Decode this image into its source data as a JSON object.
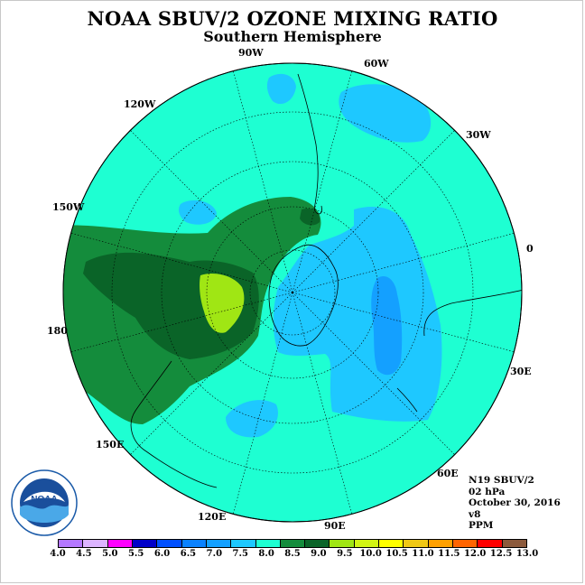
{
  "header": {
    "title": "NOAA SBUV/2 OZONE MIXING RATIO",
    "subtitle": "Southern Hemisphere"
  },
  "map": {
    "projection": "south-polar-stereographic",
    "longitude_labels": [
      "90W",
      "60W",
      "30W",
      "0",
      "30E",
      "60E",
      "90E",
      "120E",
      "150E",
      "180",
      "150W",
      "120W"
    ],
    "ocean_fill": "#1effd2",
    "contour_colors": {
      "7.0-7.5": "#1ec8ff",
      "8.0-8.5": "#148c3c",
      "8.5-9.0": "#0a6428",
      "9.0-9.5": "#a0e614"
    }
  },
  "info": {
    "satellite": "N19 SBUV/2",
    "level": "02 hPa",
    "date": "October 30, 2016",
    "version": "v8",
    "units": "PPM"
  },
  "logo": {
    "label": "NOAA",
    "icon": "noaa-logo"
  },
  "colorbar": {
    "colors": [
      "#b478ff",
      "#dcb4ff",
      "#ff00ff",
      "#0000c8",
      "#0050ff",
      "#0a82ff",
      "#14a0ff",
      "#1ec8ff",
      "#1effd2",
      "#148c3c",
      "#0a6428",
      "#a0e614",
      "#d2f514",
      "#ffff00",
      "#f0c814",
      "#ffa000",
      "#ff6400",
      "#ff0000",
      "#8c5a3c"
    ],
    "ticks": [
      "4.0",
      "4.5",
      "5.0",
      "5.5",
      "6.0",
      "6.5",
      "7.0",
      "7.5",
      "8.0",
      "8.5",
      "9.0",
      "9.5",
      "10.0",
      "10.5",
      "11.0",
      "11.5",
      "12.0",
      "12.5",
      "13.0"
    ]
  }
}
